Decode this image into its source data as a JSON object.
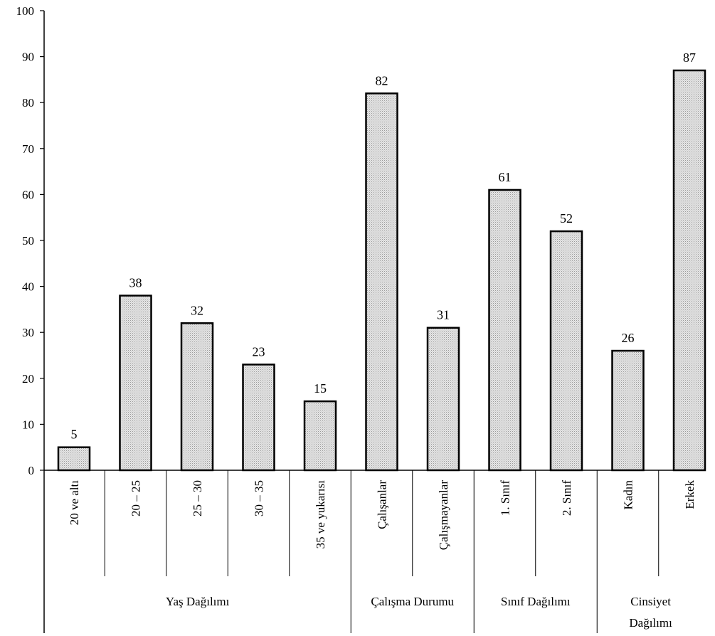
{
  "chart_data": {
    "type": "bar",
    "title": "",
    "xlabel": "",
    "ylabel": "",
    "ylim": [
      0,
      100
    ],
    "yticks": [
      0,
      10,
      20,
      30,
      40,
      50,
      60,
      70,
      80,
      90,
      100
    ],
    "grid": false,
    "categories": [
      "20 ve altı",
      "20 – 25",
      "25 – 30",
      "30 – 35",
      "35 ve yukarısı",
      "Çalışanlar",
      "Çalışmayanlar",
      "1. Sınıf",
      "2. Sınıf",
      "Kadın",
      "Erkek"
    ],
    "values": [
      5,
      38,
      32,
      23,
      15,
      82,
      31,
      61,
      52,
      26,
      87
    ],
    "data_labels": [
      "5",
      "38",
      "32",
      "23",
      "15",
      "82",
      "31",
      "61",
      "52",
      "26",
      "87"
    ],
    "groups": [
      {
        "label": "Yaş Dağılımı",
        "start": 0,
        "end": 4
      },
      {
        "label": "Çalışma Durumu",
        "start": 5,
        "end": 6
      },
      {
        "label": "Sınıf Dağılımı",
        "start": 7,
        "end": 8
      },
      {
        "label": "Cinsiyet Dağılımı",
        "start": 9,
        "end": 10
      }
    ],
    "bar_fill": "#d6d6d6",
    "bar_stroke": "#000000"
  }
}
